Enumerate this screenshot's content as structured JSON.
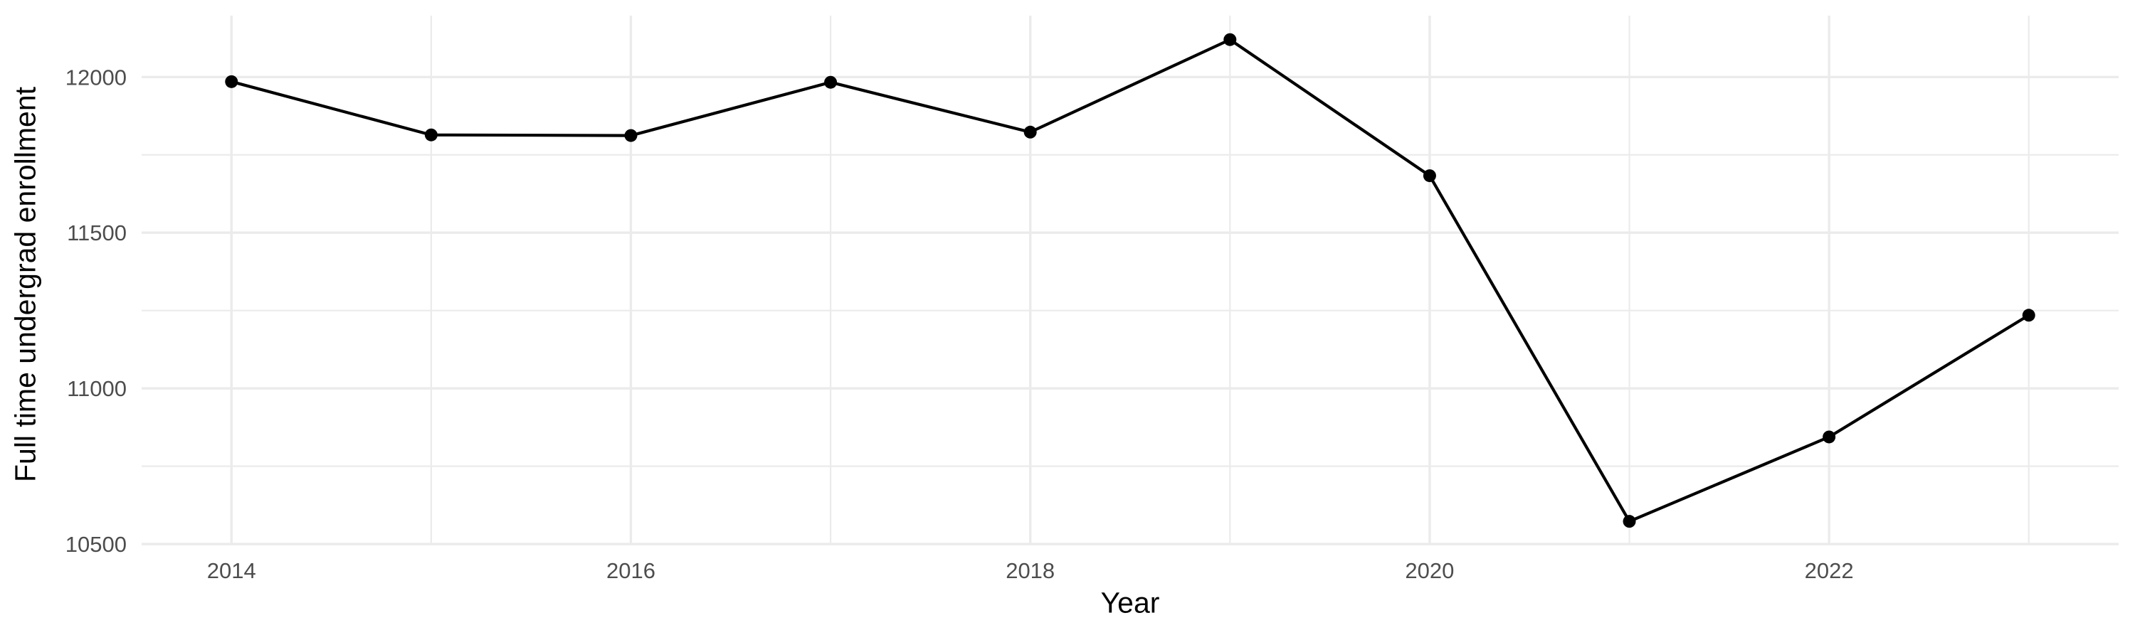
{
  "chart_data": {
    "type": "line",
    "title": "",
    "xlabel": "Year",
    "ylabel": "Full time undergrad enrollment",
    "x": [
      2014,
      2015,
      2016,
      2017,
      2018,
      2019,
      2020,
      2021,
      2022,
      2023
    ],
    "values": [
      11985,
      11814,
      11812,
      11983,
      11823,
      12120,
      11683,
      10573,
      10844,
      11235
    ],
    "series_name": "Full time undergrad enrollment",
    "xlim": [
      2013.55,
      2023.45
    ],
    "ylim": [
      10498,
      12197
    ],
    "x_ticks": {
      "major": [
        2014,
        2016,
        2018,
        2020,
        2022
      ],
      "minor": [
        2015,
        2017,
        2019,
        2021,
        2023
      ]
    },
    "y_ticks": {
      "major": [
        10500,
        11000,
        11500,
        12000
      ],
      "minor": [
        10750,
        11250,
        11750
      ]
    },
    "grid": "major-and-minor",
    "legend": "none",
    "marker": "filled-circle",
    "colors": {
      "line": "#000000",
      "point": "#000000",
      "grid": "#EBEBEB",
      "tick_label": "#4D4D4D",
      "axis_title": "#000000",
      "background": "#FFFFFF"
    }
  }
}
